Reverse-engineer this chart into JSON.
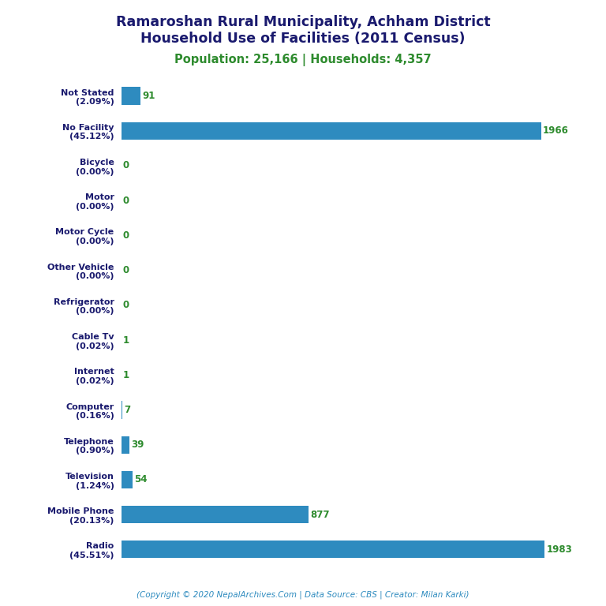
{
  "title_line1": "Ramaroshan Rural Municipality, Achham District",
  "title_line2": "Household Use of Facilities (2011 Census)",
  "subtitle": "Population: 25,166 | Households: 4,357",
  "footer": "(Copyright © 2020 NepalArchives.Com | Data Source: CBS | Creator: Milan Karki)",
  "categories": [
    "Not Stated\n(2.09%)",
    "No Facility\n(45.12%)",
    "Bicycle\n(0.00%)",
    "Motor\n(0.00%)",
    "Motor Cycle\n(0.00%)",
    "Other Vehicle\n(0.00%)",
    "Refrigerator\n(0.00%)",
    "Cable Tv\n(0.02%)",
    "Internet\n(0.02%)",
    "Computer\n(0.16%)",
    "Telephone\n(0.90%)",
    "Television\n(1.24%)",
    "Mobile Phone\n(20.13%)",
    "Radio\n(45.51%)"
  ],
  "values": [
    91,
    1966,
    0,
    0,
    0,
    0,
    0,
    1,
    1,
    7,
    39,
    54,
    877,
    1983
  ],
  "bar_color": "#2e8bbf",
  "title_color": "#1a1a6e",
  "subtitle_color": "#2e8b2e",
  "footer_color": "#2e8bbf",
  "value_color": "#2e8b2e",
  "label_color": "#1a1a6e",
  "background_color": "#ffffff",
  "xlim_max": 2100
}
